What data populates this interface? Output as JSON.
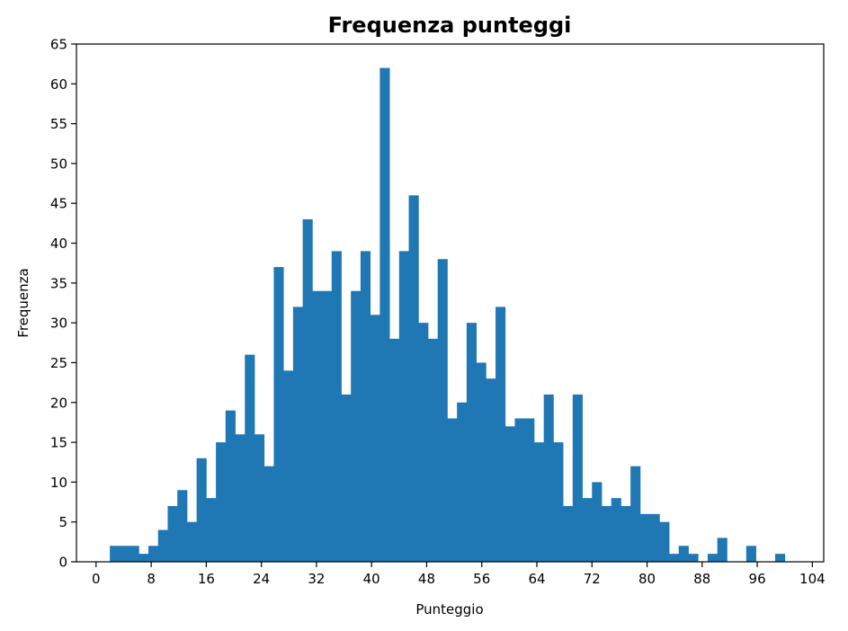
{
  "chart_data": {
    "type": "bar",
    "title": "Frequenza punteggi",
    "xlabel": "Punteggio",
    "ylabel": "Frequenza",
    "xlim": [
      -2.85,
      105.65
    ],
    "ylim": [
      0,
      65
    ],
    "xticks": [
      0,
      8,
      16,
      24,
      32,
      40,
      48,
      56,
      64,
      72,
      80,
      88,
      96,
      104
    ],
    "yticks": [
      0,
      5,
      10,
      15,
      20,
      25,
      30,
      35,
      40,
      45,
      50,
      55,
      60,
      65
    ],
    "bin_width": 1.4,
    "bin_start": 2,
    "color": "#1f77b4",
    "grid": false,
    "values": [
      2,
      2,
      2,
      1,
      2,
      4,
      7,
      9,
      5,
      13,
      8,
      15,
      19,
      16,
      26,
      16,
      12,
      37,
      24,
      32,
      43,
      34,
      34,
      39,
      21,
      34,
      39,
      31,
      62,
      28,
      39,
      46,
      30,
      28,
      38,
      18,
      20,
      30,
      25,
      23,
      32,
      17,
      18,
      18,
      15,
      21,
      15,
      7,
      21,
      8,
      10,
      7,
      8,
      7,
      12,
      6,
      6,
      5,
      1,
      2,
      1,
      0,
      1,
      3,
      0,
      0,
      2,
      0,
      0,
      1
    ]
  }
}
